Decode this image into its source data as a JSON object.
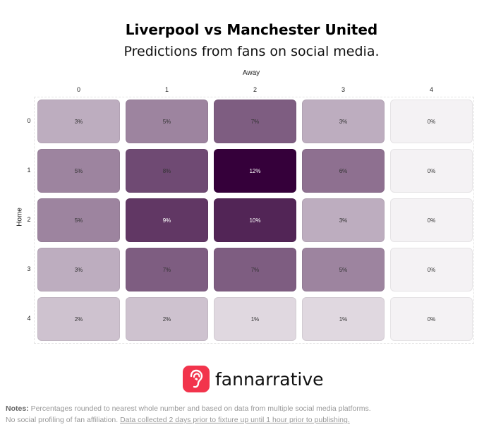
{
  "header": {
    "title": "Liverpool vs Manchester United",
    "subtitle": "Predictions from fans on social media."
  },
  "chart_data": {
    "type": "heatmap",
    "xlabel": "Away",
    "ylabel": "Home",
    "x_categories": [
      "0",
      "1",
      "2",
      "3",
      "4"
    ],
    "y_categories": [
      "0",
      "1",
      "2",
      "3",
      "4"
    ],
    "values": [
      [
        3,
        5,
        7,
        3,
        0
      ],
      [
        5,
        8,
        12,
        6,
        0
      ],
      [
        5,
        9,
        10,
        3,
        0
      ],
      [
        3,
        7,
        7,
        5,
        0
      ],
      [
        2,
        2,
        1,
        1,
        0
      ]
    ],
    "value_suffix": "%",
    "color_low": "#f4f2f4",
    "color_high": "#35003a",
    "grid": false,
    "legend": "none"
  },
  "brand": {
    "name": "fannarrative",
    "accent": "#f2344c"
  },
  "notes": {
    "label": "Notes:",
    "line1": "Percentages rounded to nearest whole number and based on data from multiple social media platforms.",
    "line2_plain": "No social profiling of fan affiliation.",
    "line2_link": "Data collected 2 days prior to fixture up until 1 hour prior to publishing."
  }
}
